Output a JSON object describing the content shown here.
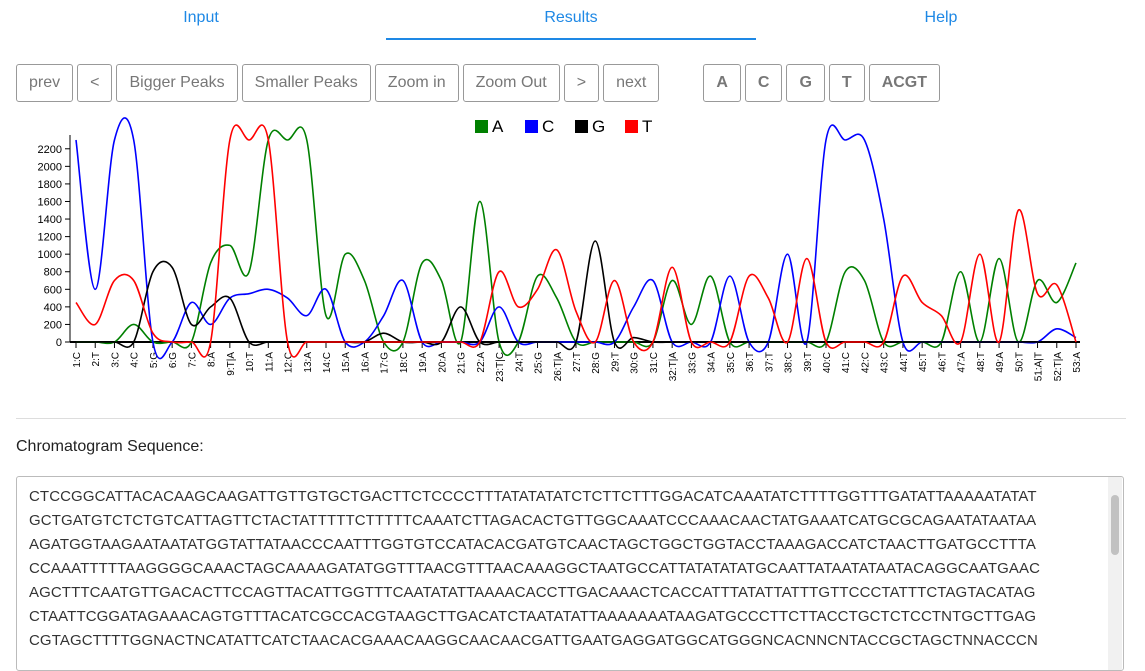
{
  "tabs": [
    "Input",
    "Results",
    "Help"
  ],
  "buttons": [
    "prev",
    "<",
    "Bigger Peaks",
    "Smaller Peaks",
    "Zoom in",
    "Zoom Out",
    ">",
    "next"
  ],
  "base_buttons": [
    "A",
    "C",
    "G",
    "T",
    "ACGT"
  ],
  "chart_data": {
    "type": "line",
    "categories": [
      "1:C",
      "2:T",
      "3:C",
      "4:C",
      "5:G",
      "6:G",
      "7:C",
      "8:A",
      "9:T|A",
      "10:T",
      "11:A",
      "12:C",
      "13:A",
      "14:C",
      "15:A",
      "16:A",
      "17:G",
      "18:C",
      "19:A",
      "20:A",
      "21:G",
      "22:A",
      "23:T|C",
      "24:T",
      "25:G",
      "26:T|A",
      "27:T",
      "28:G",
      "29:T",
      "30:G",
      "31:C",
      "32:T|A",
      "33:G",
      "34:A",
      "35:C",
      "36:T",
      "37:T",
      "38:C",
      "39:T",
      "40:C",
      "41:C",
      "42:C",
      "43:C",
      "44:T",
      "45:T",
      "46:T",
      "47:A",
      "48:T",
      "49:A",
      "50:T",
      "51:A|T",
      "52:T|A",
      "53:A"
    ],
    "series": [
      {
        "name": "A",
        "color": "#008000",
        "values": [
          0,
          0,
          0,
          200,
          0,
          0,
          0,
          900,
          1100,
          800,
          2300,
          2300,
          2300,
          300,
          1000,
          700,
          0,
          0,
          900,
          700,
          0,
          1600,
          0,
          0,
          750,
          500,
          0,
          0,
          0,
          0,
          0,
          700,
          200,
          750,
          0,
          0,
          0,
          0,
          0,
          0,
          800,
          700,
          0,
          0,
          0,
          0,
          800,
          0,
          950,
          0,
          700,
          450,
          900
        ]
      },
      {
        "name": "C",
        "color": "#0000ff",
        "values": [
          2300,
          600,
          2300,
          2300,
          0,
          0,
          450,
          200,
          500,
          550,
          600,
          500,
          300,
          600,
          0,
          0,
          300,
          700,
          0,
          0,
          0,
          0,
          400,
          0,
          0,
          0,
          0,
          0,
          0,
          400,
          700,
          0,
          0,
          0,
          750,
          0,
          0,
          1000,
          0,
          2300,
          2300,
          2300,
          1400,
          0,
          0,
          0,
          0,
          0,
          0,
          0,
          0,
          150,
          50
        ]
      },
      {
        "name": "G",
        "color": "#000000",
        "values": [
          0,
          0,
          0,
          0,
          800,
          850,
          200,
          400,
          500,
          0,
          0,
          0,
          0,
          0,
          0,
          0,
          100,
          0,
          0,
          0,
          400,
          0,
          0,
          0,
          0,
          0,
          0,
          1150,
          0,
          50,
          0,
          0,
          0,
          0,
          0,
          0,
          0,
          0,
          0,
          0,
          0,
          0,
          0,
          0,
          0,
          0,
          0,
          0,
          0,
          0,
          0,
          0,
          0
        ]
      },
      {
        "name": "T",
        "color": "#ff0000",
        "values": [
          450,
          200,
          700,
          700,
          100,
          0,
          0,
          0,
          2300,
          2300,
          2300,
          0,
          0,
          0,
          0,
          0,
          0,
          0,
          0,
          0,
          0,
          0,
          800,
          400,
          600,
          1050,
          350,
          0,
          700,
          0,
          0,
          850,
          0,
          0,
          0,
          750,
          500,
          0,
          950,
          0,
          0,
          0,
          0,
          750,
          450,
          300,
          0,
          1000,
          0,
          1500,
          550,
          650,
          0
        ]
      }
    ],
    "ylim": [
      0,
      2300
    ],
    "yticks": [
      0,
      200,
      400,
      600,
      800,
      1000,
      1200,
      1400,
      1600,
      1800,
      2000,
      2200
    ]
  },
  "sequence_label": "Chromatogram Sequence:",
  "sequence": [
    "CTCCGGCATTACACAAGCAAGATTGTTGTGCTGACTTCTCCCCTTTATATATATCTCTTCTTTGGACATCAAATATCTTTTGGTTTGATATTAAAAATATAT",
    "GCTGATGTCTCTGTCATTAGTTCTACTATTTTTCTTTTTCAAATCTTAGACACTGTTGGCAAATCCCAAACAACTATGAAATCATGCGCAGAATATAATAA",
    "AGATGGTAAGAATAATATGGTATTATAACCCAATTTGGTGTCCATACACGATGTCAACTAGCTGGCTGGTACCTAAAGACCATCTAACTTGATGCCTTTA",
    "CCAAATTTTTAAGGGGCAAACTAGCAAAAGATATGGTTTAACGTTTAACAAAGGCTAATGCCATTATATATATGCAATTATAATATAATACAGGCAATGAAC",
    "AGCTTTCAATGTTGACACTTCCAGTTACATTGGTTTCAATATATTAAAACACCTTGACAAACTCACCATTTATATTATTTGTTCCCTATTTCTAGTACATAG",
    "CTAATTCGGATAGAAACAGTGTTTACATCGCCACGTAAGCTTGACATCTAATATATTAAAAAAATAAGATGCCCTTCTTACCTGCTCTCCTNTGCTTGAG",
    "CGTAGCTTTTGGNACTNCATATTCATCTAACACGAAACAAGGCAACAACGATTGAATGAGGATGGCATGGGNCACNNCNTACCGCTAGCTNNACCCN"
  ]
}
